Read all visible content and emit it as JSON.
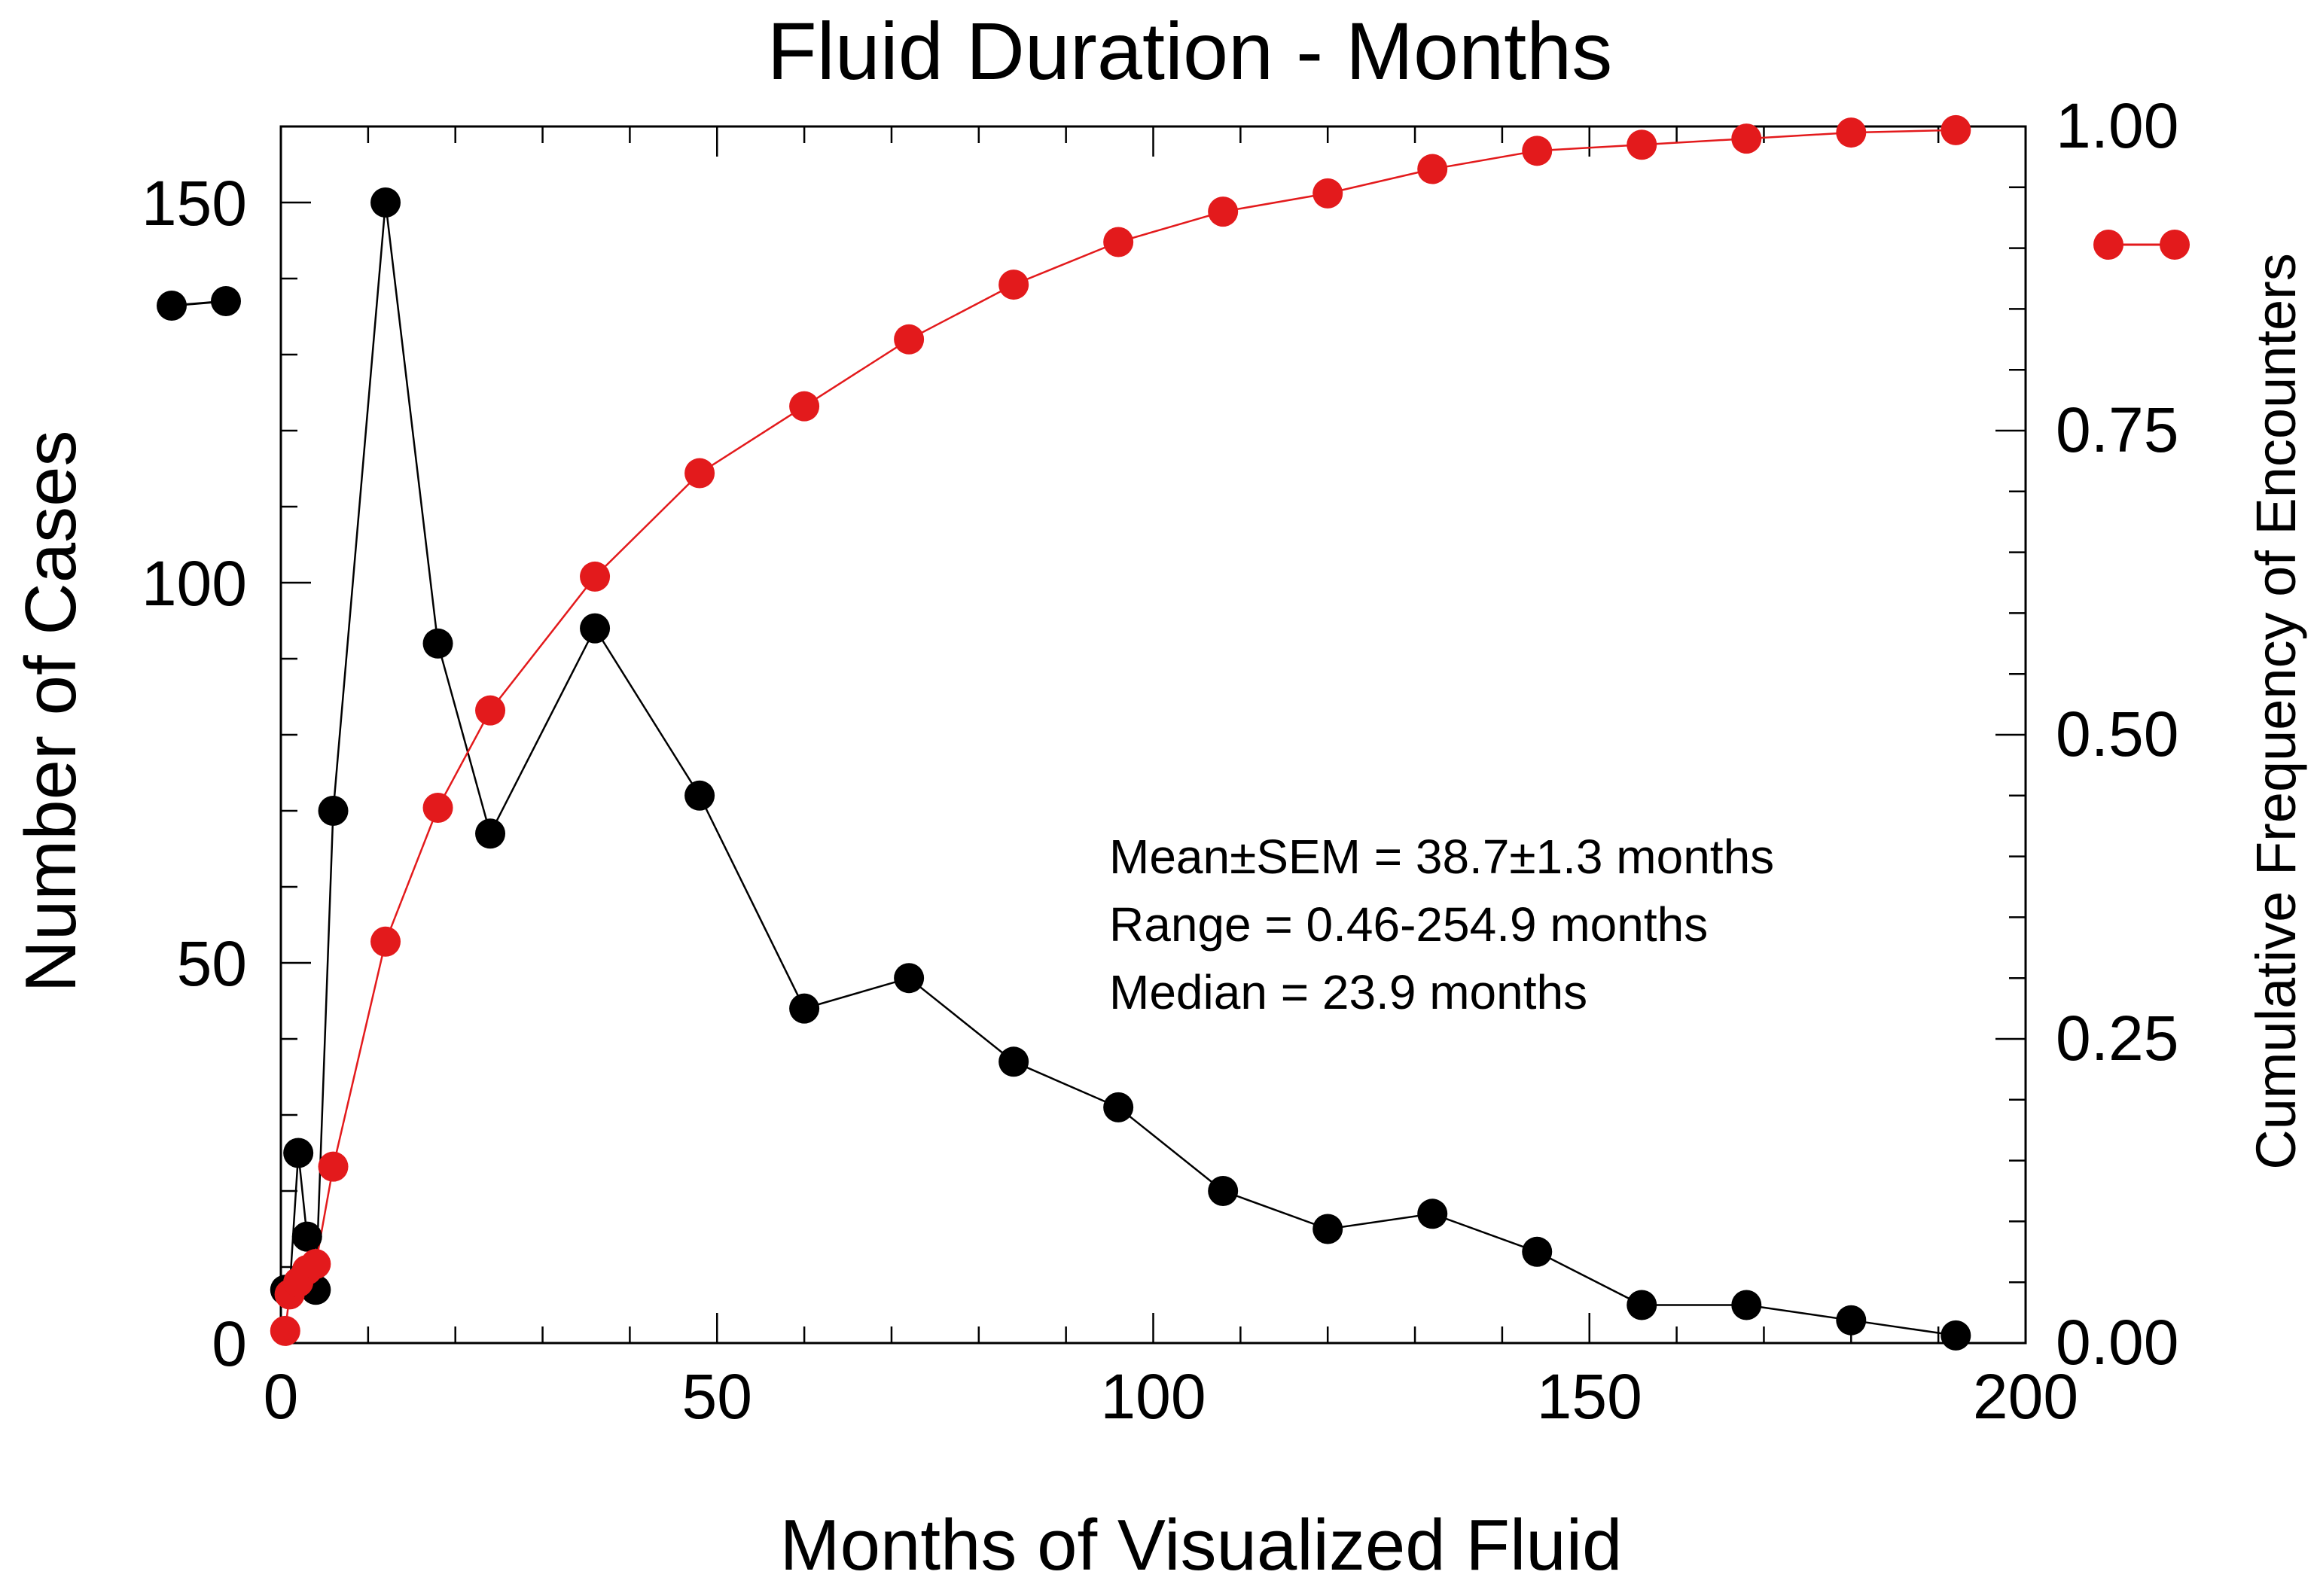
{
  "chart_data": {
    "type": "line",
    "title": "Fluid Duration - Months",
    "xlabel": "Months of Visualized Fluid",
    "ylabel": "Number of Cases",
    "y2label": "Cumulative Frequency of Encounters",
    "xlim": [
      0,
      200
    ],
    "ylim": [
      0,
      160
    ],
    "y2lim": [
      0,
      1
    ],
    "x_ticks": [
      "0",
      "50",
      "100",
      "150",
      "200"
    ],
    "y_ticks": [
      "0",
      "50",
      "100",
      "150"
    ],
    "y2_ticks": [
      "0.00",
      "0.25",
      "0.50",
      "0.75",
      "1.00"
    ],
    "grid": false,
    "series": [
      {
        "name": "Number of Cases",
        "axis": "left",
        "color": "#000000",
        "x": [
          0.5,
          1,
          2,
          3,
          4,
          6,
          12,
          18,
          24,
          36,
          48,
          60,
          72,
          84,
          96,
          108,
          120,
          132,
          144,
          156,
          168,
          180,
          192
        ],
        "values": [
          7,
          7,
          25,
          14,
          7,
          70,
          150,
          92,
          67,
          94,
          72,
          44,
          48,
          37,
          31,
          20,
          15,
          17,
          12,
          5,
          5,
          3,
          1
        ]
      },
      {
        "name": "Cumulative Frequency of Encounters",
        "axis": "right",
        "color": "#e31a1c",
        "x": [
          0.5,
          1,
          2,
          3,
          4,
          6,
          12,
          18,
          24,
          36,
          48,
          60,
          72,
          84,
          96,
          108,
          120,
          132,
          144,
          156,
          168,
          180,
          192
        ],
        "values": [
          0.01,
          0.04,
          0.05,
          0.06,
          0.065,
          0.145,
          0.33,
          0.44,
          0.52,
          0.63,
          0.715,
          0.77,
          0.825,
          0.87,
          0.905,
          0.93,
          0.945,
          0.965,
          0.98,
          0.985,
          0.99,
          0.995,
          0.997
        ]
      }
    ],
    "annotations": [
      "Mean±SEM = 38.7±1.3 months",
      "Range = 0.46-254.9 months",
      "Median = 23.9 months"
    ]
  }
}
